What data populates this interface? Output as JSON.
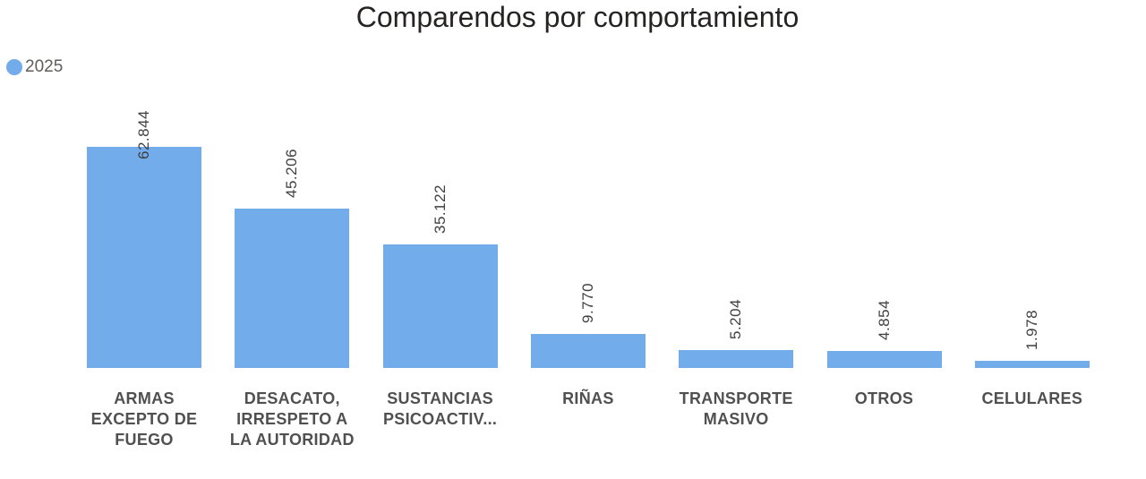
{
  "title": "Comparendos por comportamiento",
  "legend": {
    "label": "2025",
    "color": "#72aceb"
  },
  "chart_data": {
    "type": "bar",
    "title": "Comparendos por comportamiento",
    "xlabel": "",
    "ylabel": "",
    "legend": [
      "2025"
    ],
    "legend_position": "top-left",
    "grid": false,
    "categories": [
      "ARMAS EXCEPTO DE FUEGO",
      "DESACATO, IRRESPETO A LA AUTORIDAD",
      "SUSTANCIAS PSICOACTIV...",
      "RIÑAS",
      "TRANSPORTE MASIVO",
      "OTROS",
      "CELULARES"
    ],
    "series": [
      {
        "name": "2025",
        "color": "#72aceb",
        "values": [
          62844,
          45206,
          35122,
          9770,
          5204,
          4854,
          1978
        ]
      }
    ],
    "data_labels": [
      "62.844",
      "45.206",
      "35.122",
      "9.770",
      "5.204",
      "4.854",
      "1.978"
    ]
  }
}
